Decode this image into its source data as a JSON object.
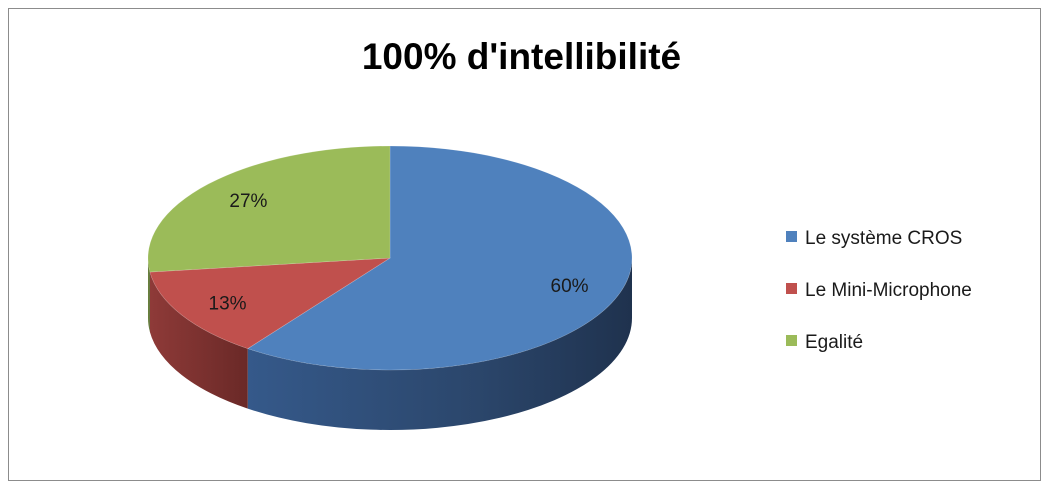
{
  "chart_data": {
    "type": "pie",
    "title": "100% d'intellibilité",
    "categories": [
      "Le système CROS",
      "Le Mini-Microphone",
      "Egalité"
    ],
    "values": [
      60,
      13,
      27
    ],
    "data_labels": [
      "60%",
      "13%",
      "27%"
    ],
    "colors": [
      "#4f81bd",
      "#c0504d",
      "#9bbb59"
    ],
    "side_colors": [
      "#2f4d74",
      "#7a3130",
      "#63783a"
    ],
    "legend": {
      "position": "right",
      "entries": [
        "Le système CROS",
        "Le Mini-Microphone",
        "Egalité"
      ]
    },
    "style": "3d"
  }
}
